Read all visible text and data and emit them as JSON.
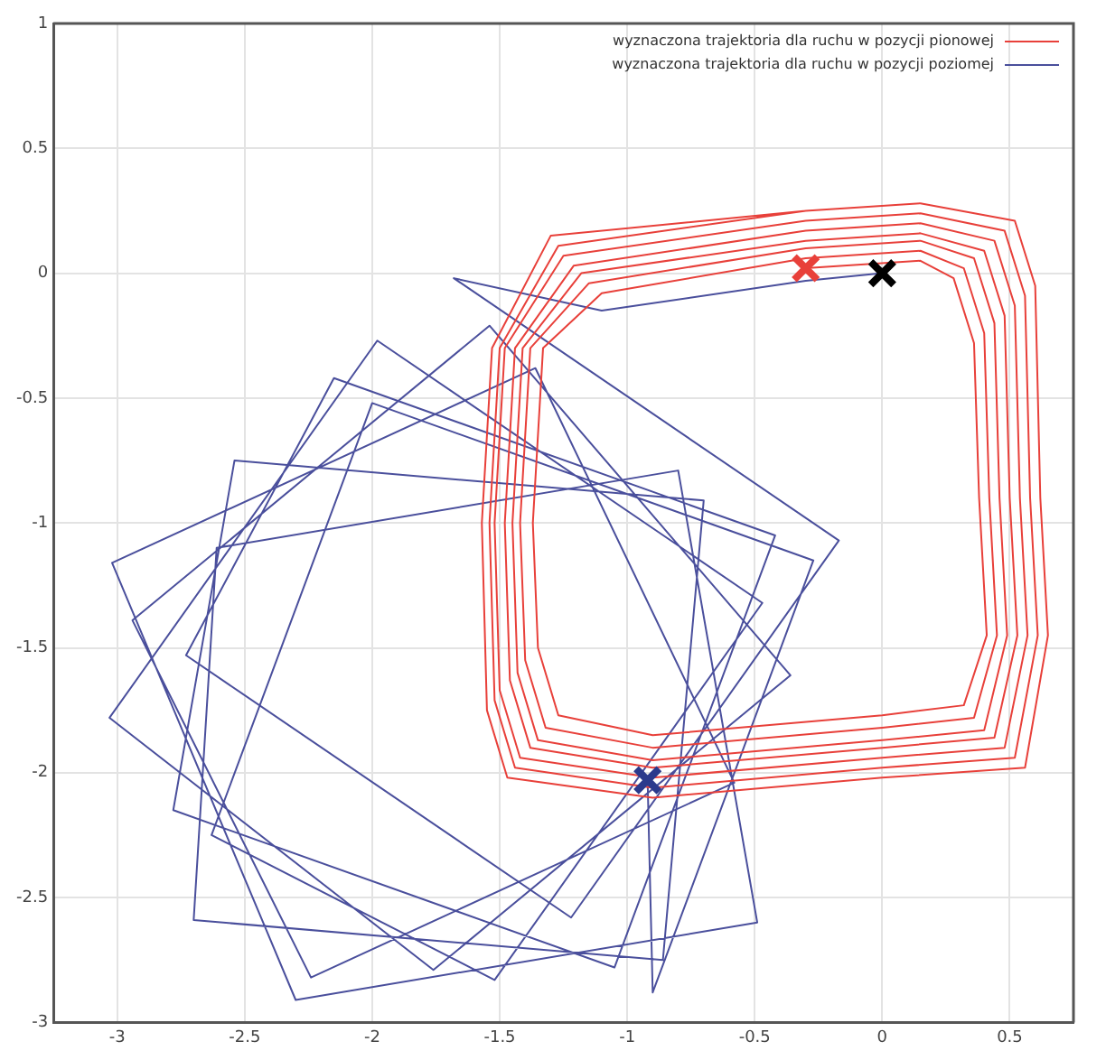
{
  "chart_data": {
    "type": "line",
    "xlim": [
      -3.25,
      0.75
    ],
    "ylim": [
      -3,
      1
    ],
    "xticks": [
      -3,
      -2.5,
      -2,
      -1.5,
      -1,
      -0.5,
      0,
      0.5
    ],
    "yticks": [
      -3,
      -2.5,
      -2,
      -1.5,
      -1,
      -0.5,
      0,
      0.5,
      1
    ],
    "grid": true,
    "legend": "top right",
    "marker": "none",
    "line_style": "solid",
    "series": [
      {
        "name": "wyznaczona trajektoria dla ruchu w pozycji pionowej",
        "color": "#e8403a",
        "x": [
          -0.3,
          0.15,
          0.28,
          0.36,
          0.38,
          0.41,
          0.32,
          0,
          -0.9,
          -1.27,
          -1.35,
          -1.37,
          -1.33,
          -1.1,
          -0.3,
          0.15,
          0.32,
          0.4,
          0.42,
          0.45,
          0.36,
          0,
          -0.9,
          -1.32,
          -1.4,
          -1.42,
          -1.38,
          -1.15,
          -0.3,
          0.15,
          0.36,
          0.44,
          0.46,
          0.49,
          0.4,
          0,
          -0.9,
          -1.35,
          -1.43,
          -1.45,
          -1.41,
          -1.18,
          -0.3,
          0.15,
          0.4,
          0.48,
          0.5,
          0.53,
          0.44,
          0,
          -0.9,
          -1.38,
          -1.46,
          -1.48,
          -1.44,
          -1.21,
          -0.3,
          0.15,
          0.44,
          0.52,
          0.54,
          0.57,
          0.48,
          0,
          -0.9,
          -1.42,
          -1.5,
          -1.52,
          -1.48,
          -1.25,
          -0.3,
          0.15,
          0.48,
          0.56,
          0.58,
          0.61,
          0.52,
          0,
          -0.9,
          -1.44,
          -1.52,
          -1.54,
          -1.5,
          -1.27,
          -0.3,
          0.15,
          0.52,
          0.6,
          0.62,
          0.65,
          0.56,
          0,
          -0.9,
          -1.47,
          -1.55,
          -1.57,
          -1.53,
          -1.3,
          -0.3
        ],
        "values": [
          0.02,
          0.05,
          -0.02,
          -0.28,
          -0.9,
          -1.45,
          -1.73,
          -1.77,
          -1.85,
          -1.77,
          -1.5,
          -1,
          -0.3,
          -0.08,
          0.06,
          0.09,
          0.02,
          -0.24,
          -0.9,
          -1.45,
          -1.78,
          -1.82,
          -1.9,
          -1.82,
          -1.55,
          -1,
          -0.3,
          -0.04,
          0.1,
          0.13,
          0.06,
          -0.2,
          -0.9,
          -1.45,
          -1.83,
          -1.87,
          -1.95,
          -1.87,
          -1.6,
          -1,
          -0.3,
          0,
          0.13,
          0.16,
          0.09,
          -0.17,
          -0.9,
          -1.45,
          -1.86,
          -1.9,
          -1.98,
          -1.9,
          -1.63,
          -1,
          -0.3,
          0.03,
          0.17,
          0.2,
          0.13,
          -0.13,
          -0.9,
          -1.45,
          -1.9,
          -1.94,
          -2.02,
          -1.94,
          -1.67,
          -1,
          -0.3,
          0.07,
          0.21,
          0.24,
          0.17,
          -0.09,
          -0.9,
          -1.45,
          -1.94,
          -1.98,
          -2.06,
          -1.98,
          -1.71,
          -1,
          -0.3,
          0.11,
          0.25,
          0.28,
          0.21,
          -0.05,
          -0.9,
          -1.45,
          -1.98,
          -2.02,
          -2.1,
          -2.02,
          -1.75,
          -1,
          -0.3,
          0.15,
          0.25
        ]
      },
      {
        "name": "wyznaczona trajektoria dla ruchu w pozycji poziomej",
        "color": "#4a4f9c",
        "x": [
          0,
          -0.3,
          -1.1,
          -1.68,
          -0.17,
          -1.22,
          -2.73,
          -2.15,
          -0.42,
          -1.05,
          -2.78,
          -2.54,
          -0.7,
          -0.86,
          -2.7,
          -2.61,
          -0.8,
          -0.49,
          -2.3,
          -3.02,
          -1.36,
          -0.58,
          -2.24,
          -2.94,
          -1.54,
          -0.36,
          -1.76,
          -3.03,
          -1.98,
          -0.47,
          -1.52,
          -2.63,
          -2,
          -0.27,
          -0.9,
          -0.92
        ],
        "values": [
          0,
          -0.03,
          -0.15,
          -0.02,
          -1.07,
          -2.58,
          -1.53,
          -0.42,
          -1.05,
          -2.78,
          -2.15,
          -0.75,
          -0.91,
          -2.75,
          -2.59,
          -1.1,
          -0.79,
          -2.6,
          -2.91,
          -1.16,
          -0.38,
          -2.04,
          -2.82,
          -1.39,
          -0.21,
          -1.61,
          -2.79,
          -1.78,
          -0.27,
          -1.32,
          -2.83,
          -2.25,
          -0.52,
          -1.15,
          -2.88,
          -2.03
        ]
      },
      {
        "type": "scatter",
        "marker": "cross",
        "color": "#e8403a",
        "x": [
          -0.3
        ],
        "values": [
          0.02
        ]
      },
      {
        "type": "scatter",
        "marker": "cross",
        "color": "#000000",
        "x": [
          0
        ],
        "values": [
          0
        ]
      },
      {
        "type": "scatter",
        "marker": "cross",
        "color": "#2b3a8c",
        "x": [
          -0.92
        ],
        "values": [
          -2.03
        ]
      }
    ]
  }
}
